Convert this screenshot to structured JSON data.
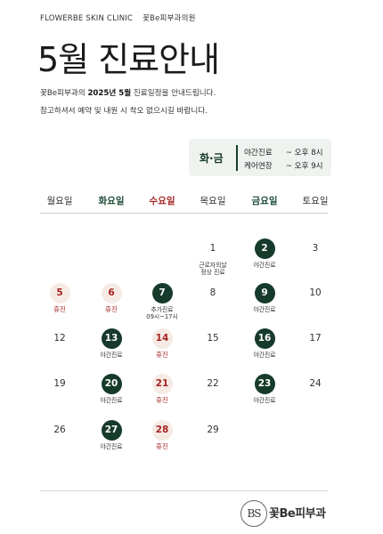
{
  "clinic_name": "FLOWERBE SKIN CLINIC",
  "clinic_name_kr": "꽃Be피부과의원",
  "title": "5월 진료안내",
  "intro": {
    "line1_pre": "꽃Be피부과의 ",
    "line1_bold": "2025년 5월",
    "line1_post": " 진료일정을 안내드립니다.",
    "line2": "참고하셔서 예약 및 내원 시 착오 없으시길 바랍니다."
  },
  "hours": {
    "days": "화·금",
    "rows": [
      {
        "label": "야간진료",
        "value": "~ 오후 8시"
      },
      {
        "label": "케어연장",
        "value": "~ 오후 9시"
      }
    ]
  },
  "weekdays": [
    {
      "label": "월요일",
      "style": "normal"
    },
    {
      "label": "화요일",
      "style": "green"
    },
    {
      "label": "수요일",
      "style": "red"
    },
    {
      "label": "목요일",
      "style": "normal"
    },
    {
      "label": "금요일",
      "style": "green"
    },
    {
      "label": "토요일",
      "style": "normal"
    }
  ],
  "calendar": [
    [
      null,
      null,
      null,
      {
        "day": "1",
        "style": "plain",
        "note": "근로자의날\n정상 진료"
      },
      {
        "day": "2",
        "style": "green",
        "note": "야간진료"
      },
      {
        "day": "3",
        "style": "plain",
        "note": ""
      }
    ],
    [
      {
        "day": "5",
        "style": "red",
        "note": "휴진"
      },
      {
        "day": "6",
        "style": "red",
        "note": "휴진"
      },
      {
        "day": "7",
        "style": "green",
        "note": "추가진료\n09시~17시"
      },
      {
        "day": "8",
        "style": "plain",
        "note": ""
      },
      {
        "day": "9",
        "style": "green",
        "note": "야간진료"
      },
      {
        "day": "10",
        "style": "plain",
        "note": ""
      }
    ],
    [
      {
        "day": "12",
        "style": "plain",
        "note": ""
      },
      {
        "day": "13",
        "style": "green",
        "note": "야간진료"
      },
      {
        "day": "14",
        "style": "red",
        "note": "휴진"
      },
      {
        "day": "15",
        "style": "plain",
        "note": ""
      },
      {
        "day": "16",
        "style": "green",
        "note": "야간진료"
      },
      {
        "day": "17",
        "style": "plain",
        "note": ""
      }
    ],
    [
      {
        "day": "19",
        "style": "plain",
        "note": ""
      },
      {
        "day": "20",
        "style": "green",
        "note": "야간진료"
      },
      {
        "day": "21",
        "style": "red",
        "note": "휴진"
      },
      {
        "day": "22",
        "style": "plain",
        "note": ""
      },
      {
        "day": "23",
        "style": "green",
        "note": "야간진료"
      },
      {
        "day": "24",
        "style": "plain",
        "note": ""
      }
    ],
    [
      {
        "day": "26",
        "style": "plain",
        "note": ""
      },
      {
        "day": "27",
        "style": "green",
        "note": "야간진료"
      },
      {
        "day": "28",
        "style": "red",
        "note": "휴진"
      },
      {
        "day": "29",
        "style": "plain",
        "note": ""
      },
      null,
      null
    ]
  ],
  "logo": {
    "mark": "BS",
    "text": "꽃Be피부과"
  },
  "colors": {
    "green": "#163a2b",
    "red": "#a52424",
    "red_bg": "#f6ebe4",
    "hours_bg": "#eef3ef"
  }
}
